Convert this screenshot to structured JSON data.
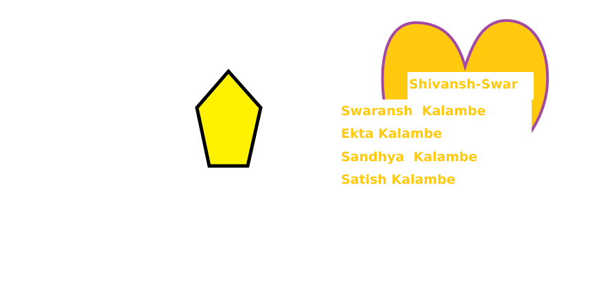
{
  "colors": {
    "pentagon_fill": "#fff200",
    "pentagon_stroke": "#000000",
    "heart_fill": "#ffc90e",
    "heart_stroke": "#a349a4",
    "text": "#ffc90e",
    "background": "#ffffff"
  },
  "heart": {
    "title": "Shivansh-Swar"
  },
  "names": [
    "Swaransh  Kalambe",
    "Ekta Kalambe",
    "Sandhya  Kalambe",
    "Satish Kalambe"
  ]
}
